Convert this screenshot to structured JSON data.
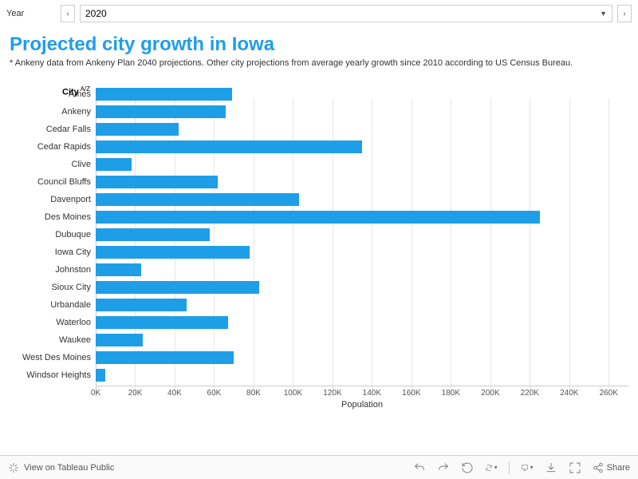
{
  "filter": {
    "label": "Year",
    "value": "2020",
    "prev": "‹",
    "next": "›"
  },
  "title": "Projected city growth in Iowa",
  "subtitle": "* Ankeny data from Ankeny Plan 2040 projections. Other city projections from average yearly growth since 2010 according to US Census Bureau.",
  "axis": {
    "city_label": "City",
    "x_label": "Population",
    "xlim": [
      0,
      270000
    ],
    "xtick_step": 20000,
    "xtick_labels": [
      "0K",
      "20K",
      "40K",
      "60K",
      "80K",
      "100K",
      "120K",
      "140K",
      "160K",
      "180K",
      "200K",
      "220K",
      "240K",
      "260K"
    ]
  },
  "chart": {
    "type": "bar",
    "bar_color": "#1f9ee8",
    "grid_color": "#e6e6e6",
    "background_color": "#ffffff",
    "title_color": "#1f9ee8",
    "title_fontsize": 24,
    "label_fontsize": 11,
    "cities": [
      {
        "name": "Ames",
        "value": 69000
      },
      {
        "name": "Ankeny",
        "value": 66000
      },
      {
        "name": "Cedar Falls",
        "value": 42000
      },
      {
        "name": "Cedar Rapids",
        "value": 135000
      },
      {
        "name": "Clive",
        "value": 18000
      },
      {
        "name": "Council Bluffs",
        "value": 62000
      },
      {
        "name": "Davenport",
        "value": 103000
      },
      {
        "name": "Des Moines",
        "value": 225000
      },
      {
        "name": "Dubuque",
        "value": 58000
      },
      {
        "name": "Iowa City",
        "value": 78000
      },
      {
        "name": "Johnston",
        "value": 23000
      },
      {
        "name": "Sioux City",
        "value": 83000
      },
      {
        "name": "Urbandale",
        "value": 46000
      },
      {
        "name": "Waterloo",
        "value": 67000
      },
      {
        "name": "Waukee",
        "value": 24000
      },
      {
        "name": "West Des Moines",
        "value": 70000
      },
      {
        "name": "Windsor Heights",
        "value": 5000
      }
    ]
  },
  "footer": {
    "view_label": "View on Tableau Public",
    "share_label": "Share"
  }
}
